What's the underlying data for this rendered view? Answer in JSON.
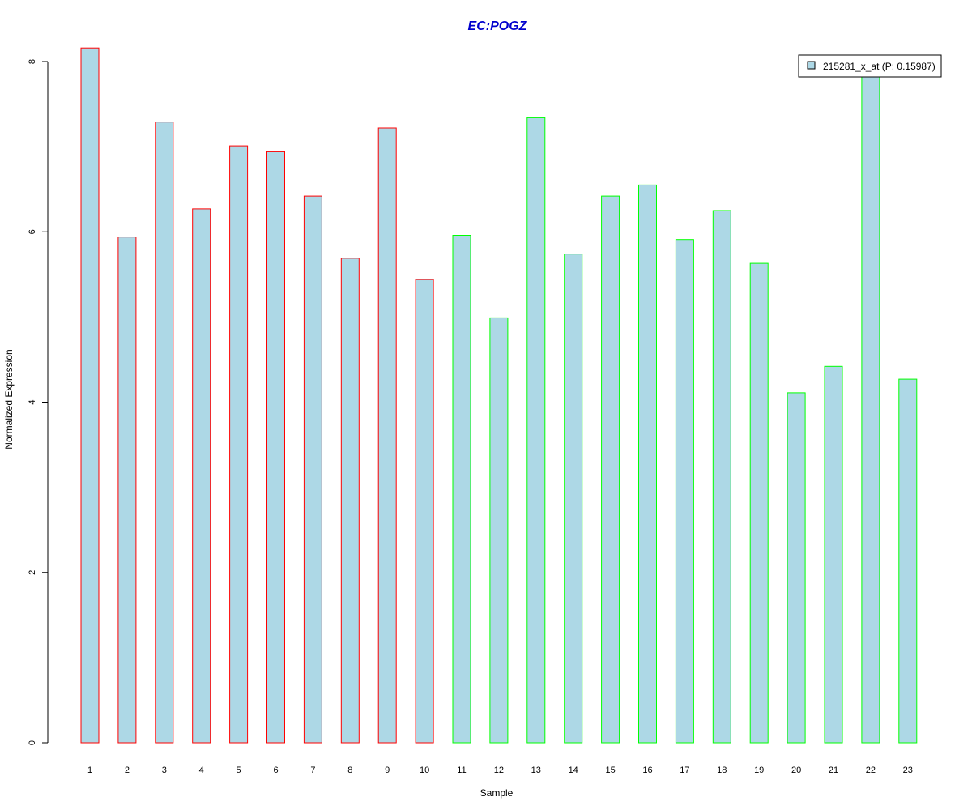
{
  "chart_data": {
    "type": "bar",
    "title": "EC:POGZ",
    "xlabel": "Sample",
    "ylabel": "Normalized Expression",
    "categories": [
      "1",
      "2",
      "3",
      "4",
      "5",
      "6",
      "7",
      "8",
      "9",
      "10",
      "11",
      "12",
      "13",
      "14",
      "15",
      "16",
      "17",
      "18",
      "19",
      "20",
      "21",
      "22",
      "23"
    ],
    "values": [
      8.16,
      5.94,
      7.29,
      6.27,
      7.01,
      6.94,
      6.42,
      5.69,
      7.22,
      5.44,
      5.96,
      4.99,
      7.34,
      5.74,
      6.42,
      6.55,
      5.91,
      6.25,
      5.63,
      4.11,
      4.42,
      7.85,
      4.27
    ],
    "group": [
      1,
      1,
      1,
      1,
      1,
      1,
      1,
      1,
      1,
      1,
      2,
      2,
      2,
      2,
      2,
      2,
      2,
      2,
      2,
      2,
      2,
      2,
      2
    ],
    "yticks": [
      0,
      2,
      4,
      6,
      8
    ],
    "ylim": [
      0,
      8.2
    ],
    "grid": false,
    "legend": {
      "position": "top-right",
      "entries": [
        {
          "label": "215281_x_at (P: 0.15987)"
        }
      ]
    },
    "colors": {
      "fill": "#ADD8E6",
      "group1_border": "#FF0000",
      "group2_border": "#00FF00",
      "title": "#0000CD"
    }
  }
}
